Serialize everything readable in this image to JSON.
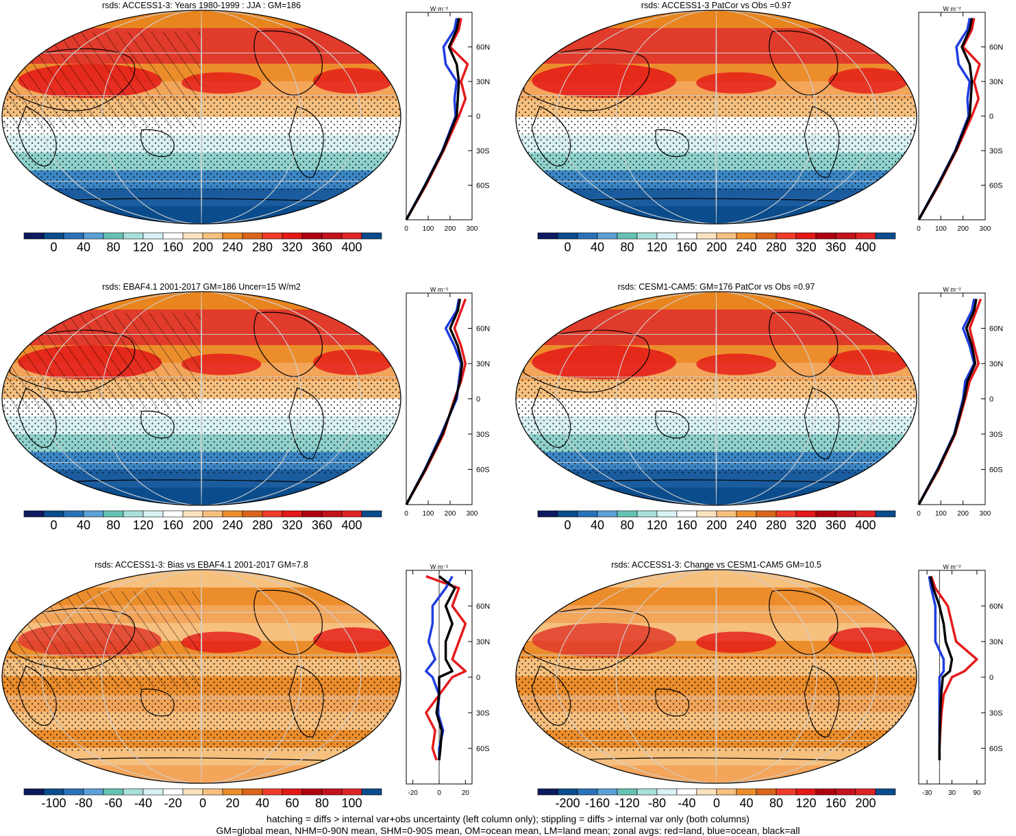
{
  "palettes": {
    "abs": [
      "#0d1a5e",
      "#0a4c8c",
      "#2a72b8",
      "#5ba0d6",
      "#66c2b4",
      "#a8dfda",
      "#d8f2f4",
      "#ffffff",
      "#fbe3c0",
      "#f6c07f",
      "#ec8d2c",
      "#d9651a",
      "#f03b2a",
      "#e41818",
      "#b0000f",
      "#c4121c",
      "#de2424",
      "#0a4c8c"
    ],
    "bias": [
      "#0d1a5e",
      "#0a4c8c",
      "#2a72b8",
      "#5ba0d6",
      "#66c2b4",
      "#a8dfda",
      "#d8f2f4",
      "#ffffff",
      "#fbe3c0",
      "#f6c07f",
      "#ec8d2c",
      "#d9651a",
      "#f03b2a",
      "#e41818",
      "#b0000f",
      "#c4121c",
      "#de2424",
      "#0a4c8c"
    ]
  },
  "line_colors": {
    "land": "#e41a1c",
    "ocean": "#1f3ee0",
    "all": "#000000"
  },
  "zonal_unit": "W m⁻²",
  "panels": [
    {
      "title": "rsds: ACCESS1-3: Years 1980-1999 : JJA : GM=186",
      "kind": "abs",
      "hatch": true,
      "colorbar_labels": [
        "0",
        "40",
        "80",
        "120",
        "160",
        "200",
        "240",
        "280",
        "320",
        "360",
        "400"
      ],
      "lat_ticks": [
        "60N",
        "30N",
        "0",
        "30S",
        "60S"
      ],
      "x_ticks": [
        "0",
        "100",
        "200",
        "300"
      ]
    },
    {
      "title": "rsds: ACCESS1-3 PatCor vs Obs =0.97",
      "kind": "abs",
      "hatch": false,
      "colorbar_labels": [
        "0",
        "40",
        "80",
        "120",
        "160",
        "200",
        "240",
        "280",
        "320",
        "360",
        "400"
      ],
      "lat_ticks": [
        "60N",
        "30N",
        "0",
        "30S",
        "60S"
      ],
      "x_ticks": [
        "0",
        "100",
        "200",
        "300"
      ]
    },
    {
      "title": "rsds: EBAF4.1 2001-2017 GM=186 Uncer=15 W/m2",
      "kind": "abs",
      "hatch": true,
      "colorbar_labels": [
        "0",
        "40",
        "80",
        "120",
        "160",
        "200",
        "240",
        "280",
        "320",
        "360",
        "400"
      ],
      "lat_ticks": [
        "60N",
        "30N",
        "0",
        "30S",
        "60S"
      ],
      "x_ticks": [
        "0",
        "100",
        "200",
        "300"
      ]
    },
    {
      "title": "rsds: CESM1-CAM5: GM=176 PatCor vs Obs =0.97",
      "kind": "abs",
      "hatch": false,
      "colorbar_labels": [
        "0",
        "40",
        "80",
        "120",
        "160",
        "200",
        "240",
        "280",
        "320",
        "360",
        "400"
      ],
      "lat_ticks": [
        "60N",
        "30N",
        "0",
        "30S",
        "60S"
      ],
      "x_ticks": [
        "0",
        "100",
        "200",
        "300"
      ]
    },
    {
      "title": "rsds: ACCESS1-3: Bias vs EBAF4.1 2001-2017 GM=7.8",
      "kind": "bias",
      "hatch": true,
      "colorbar_labels": [
        "-100",
        "-80",
        "-60",
        "-40",
        "-20",
        "0",
        "20",
        "40",
        "60",
        "80",
        "100"
      ],
      "lat_ticks": [
        "60N",
        "30N",
        "0",
        "30S",
        "60S"
      ],
      "x_ticks": [
        "-20",
        "0",
        "20"
      ]
    },
    {
      "title": "rsds: ACCESS1-3: Change vs CESM1-CAM5 GM=10.5",
      "kind": "bias",
      "hatch": false,
      "colorbar_labels": [
        "-200",
        "-160",
        "-120",
        "-80",
        "-40",
        "0",
        "40",
        "80",
        "120",
        "160",
        "200"
      ],
      "lat_ticks": [
        "60N",
        "30N",
        "0",
        "30S",
        "60S"
      ],
      "x_ticks": [
        "-30",
        "30",
        "90"
      ]
    }
  ],
  "chart_data": [
    {
      "type": "line",
      "title": "rsds: ACCESS1-3: Years 1980-1999 : JJA : GM=186",
      "ylabel": "W m⁻²",
      "xlim": [
        0,
        300
      ],
      "ylim": [
        -90,
        90
      ],
      "series": [
        {
          "name": "land",
          "y": [
            -90,
            -60,
            -30,
            0,
            15,
            30,
            45,
            60,
            75,
            85
          ],
          "x": [
            0,
            90,
            170,
            240,
            270,
            250,
            280,
            200,
            240,
            250
          ]
        },
        {
          "name": "ocean",
          "y": [
            -90,
            -60,
            -30,
            0,
            15,
            30,
            45,
            60,
            75,
            85
          ],
          "x": [
            0,
            85,
            165,
            225,
            220,
            230,
            180,
            170,
            220,
            230
          ]
        },
        {
          "name": "all",
          "y": [
            -90,
            -60,
            -30,
            0,
            15,
            30,
            45,
            60,
            75,
            85
          ],
          "x": [
            0,
            87,
            167,
            230,
            235,
            240,
            230,
            195,
            230,
            240
          ]
        }
      ]
    },
    {
      "type": "line",
      "title": "rsds: ACCESS1-3 PatCor vs Obs =0.97",
      "ylabel": "W m⁻²",
      "xlim": [
        0,
        300
      ],
      "ylim": [
        -90,
        90
      ],
      "series": [
        {
          "name": "land",
          "y": [
            -90,
            -60,
            -30,
            0,
            15,
            30,
            45,
            60,
            75,
            85
          ],
          "x": [
            0,
            90,
            170,
            240,
            270,
            250,
            275,
            200,
            240,
            250
          ]
        },
        {
          "name": "ocean",
          "y": [
            -90,
            -60,
            -30,
            0,
            15,
            30,
            45,
            60,
            75,
            85
          ],
          "x": [
            0,
            85,
            165,
            225,
            220,
            230,
            180,
            170,
            220,
            230
          ]
        },
        {
          "name": "all",
          "y": [
            -90,
            -60,
            -30,
            0,
            15,
            30,
            45,
            60,
            75,
            85
          ],
          "x": [
            0,
            87,
            167,
            230,
            235,
            240,
            230,
            195,
            230,
            240
          ]
        }
      ]
    },
    {
      "type": "line",
      "title": "rsds: EBAF4.1 2001-2017 GM=186 Uncer=15 W/m2",
      "ylabel": "W m⁻²",
      "xlim": [
        0,
        300
      ],
      "ylim": [
        -90,
        90
      ],
      "series": [
        {
          "name": "land",
          "y": [
            -90,
            -60,
            -30,
            0,
            15,
            30,
            45,
            60,
            75,
            85
          ],
          "x": [
            0,
            90,
            170,
            220,
            250,
            270,
            250,
            220,
            250,
            270
          ]
        },
        {
          "name": "ocean",
          "y": [
            -90,
            -60,
            -30,
            0,
            15,
            30,
            45,
            60,
            75,
            85
          ],
          "x": [
            0,
            85,
            160,
            230,
            240,
            250,
            220,
            180,
            230,
            240
          ]
        },
        {
          "name": "all",
          "y": [
            -90,
            -60,
            -30,
            0,
            15,
            30,
            45,
            60,
            75,
            85
          ],
          "x": [
            0,
            87,
            165,
            225,
            245,
            255,
            235,
            200,
            235,
            245
          ]
        }
      ]
    },
    {
      "type": "line",
      "title": "rsds: CESM1-CAM5: GM=176 PatCor vs Obs =0.97",
      "ylabel": "W m⁻²",
      "xlim": [
        0,
        300
      ],
      "ylim": [
        -90,
        90
      ],
      "series": [
        {
          "name": "land",
          "y": [
            -90,
            -60,
            -30,
            0,
            15,
            30,
            45,
            60,
            75,
            85
          ],
          "x": [
            0,
            90,
            165,
            210,
            230,
            270,
            250,
            230,
            260,
            280
          ]
        },
        {
          "name": "ocean",
          "y": [
            -90,
            -60,
            -30,
            0,
            15,
            30,
            45,
            60,
            75,
            85
          ],
          "x": [
            0,
            85,
            160,
            200,
            210,
            250,
            230,
            200,
            240,
            250
          ]
        },
        {
          "name": "all",
          "y": [
            -90,
            -60,
            -30,
            0,
            15,
            30,
            45,
            60,
            75,
            85
          ],
          "x": [
            0,
            87,
            162,
            205,
            220,
            255,
            240,
            215,
            250,
            260
          ]
        }
      ]
    },
    {
      "type": "line",
      "title": "rsds: ACCESS1-3: Bias vs EBAF4.1 2001-2017 GM=7.8",
      "ylabel": "W m⁻²",
      "xlim": [
        -25,
        25
      ],
      "ylim": [
        -90,
        90
      ],
      "series": [
        {
          "name": "land",
          "y": [
            -70,
            -60,
            -45,
            -30,
            -15,
            0,
            5,
            15,
            30,
            45,
            60,
            75,
            85
          ],
          "x": [
            -2,
            -5,
            -3,
            -10,
            0,
            10,
            20,
            10,
            15,
            20,
            10,
            15,
            -10
          ]
        },
        {
          "name": "ocean",
          "y": [
            -70,
            -60,
            -45,
            -30,
            -15,
            0,
            5,
            15,
            30,
            45,
            60,
            75,
            85
          ],
          "x": [
            0,
            0,
            3,
            -1,
            0,
            -5,
            -10,
            -3,
            -8,
            -5,
            -5,
            5,
            10
          ]
        },
        {
          "name": "all",
          "y": [
            -70,
            -60,
            -45,
            -30,
            -15,
            0,
            5,
            15,
            30,
            45,
            60,
            75,
            85
          ],
          "x": [
            0,
            1,
            2,
            -2,
            0,
            0,
            10,
            5,
            5,
            10,
            5,
            12,
            0
          ]
        }
      ]
    },
    {
      "type": "line",
      "title": "rsds: ACCESS1-3: Change vs CESM1-CAM5 GM=10.5",
      "ylabel": "W m⁻²",
      "xlim": [
        -50,
        110
      ],
      "ylim": [
        -90,
        90
      ],
      "series": [
        {
          "name": "land",
          "y": [
            -70,
            -60,
            -45,
            -30,
            -15,
            0,
            5,
            15,
            30,
            45,
            60,
            75,
            85
          ],
          "x": [
            0,
            0,
            2,
            5,
            10,
            30,
            60,
            90,
            40,
            30,
            20,
            -10,
            -20
          ]
        },
        {
          "name": "ocean",
          "y": [
            -70,
            -60,
            -45,
            -30,
            -15,
            0,
            5,
            15,
            30,
            45,
            60,
            75,
            85
          ],
          "x": [
            0,
            0,
            0,
            0,
            0,
            0,
            10,
            10,
            -10,
            -10,
            -10,
            -20,
            -25
          ]
        },
        {
          "name": "all",
          "y": [
            -70,
            -60,
            -45,
            -30,
            -15,
            0,
            5,
            15,
            30,
            45,
            60,
            75,
            85
          ],
          "x": [
            0,
            0,
            1,
            2,
            4,
            8,
            25,
            30,
            15,
            10,
            0,
            -15,
            -22
          ]
        }
      ]
    }
  ],
  "footer": {
    "line1": "hatching = diffs > internal var+obs uncertainty (left column only); stippling = diffs > internal var only (both columns)",
    "line2": "GM=global mean, NHM=0-90N mean, SHM=0-90S mean, OM=ocean mean, LM=land mean; zonal avgs: red=land, blue=ocean, black=all"
  }
}
